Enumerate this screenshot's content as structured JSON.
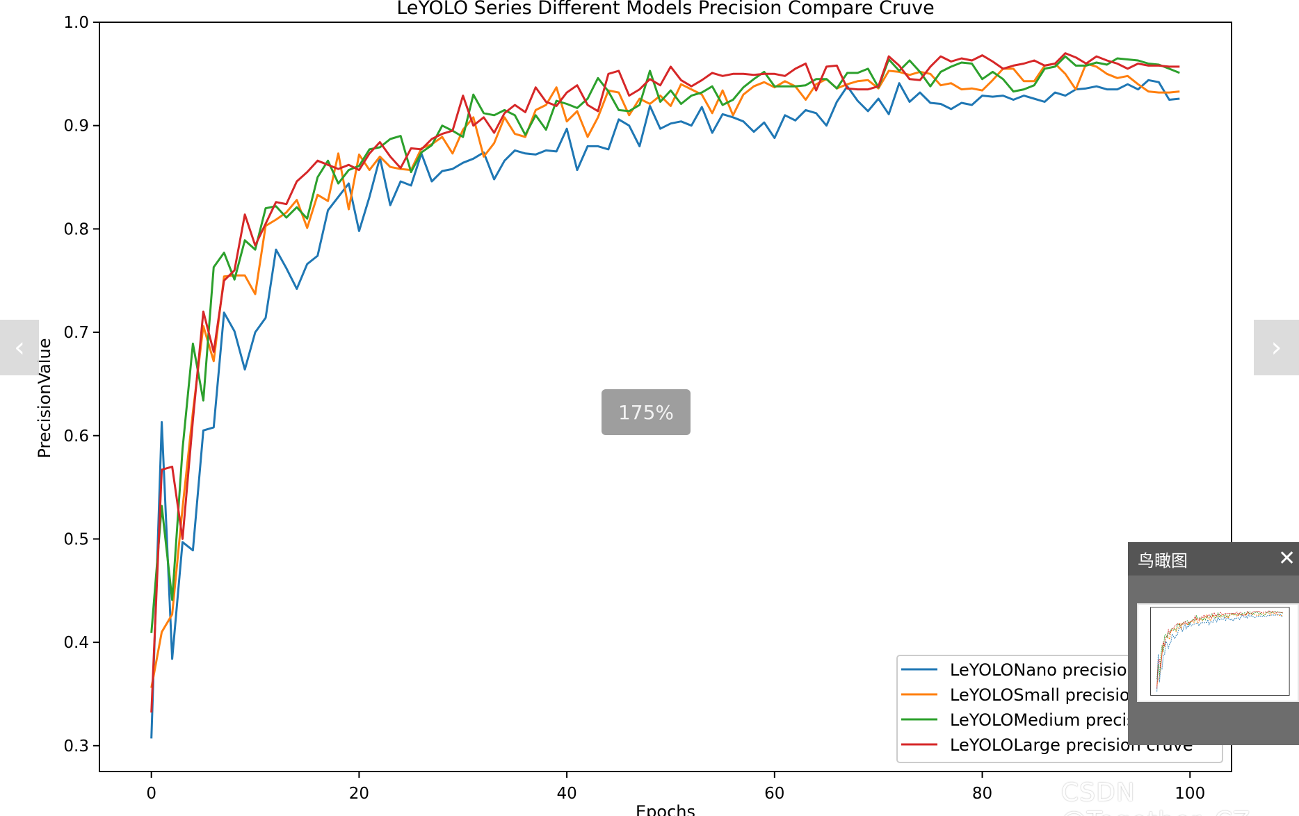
{
  "chart_data": {
    "type": "line",
    "title": "LeYOLO Series Different Models Precision Compare Cruve",
    "xlabel": "Epochs",
    "ylabel": "PrecisionValue",
    "xlim": [
      -5,
      104
    ],
    "ylim": [
      0.275,
      1.0
    ],
    "xticks": [
      0,
      20,
      40,
      60,
      80,
      100
    ],
    "yticks": [
      0.3,
      0.4,
      0.5,
      0.6,
      0.7,
      0.8,
      0.9,
      1.0
    ],
    "grid": false,
    "legend_position": "lower-right",
    "series": [
      {
        "name": "LeYOLONano precision cruve",
        "color": "#1f77b4",
        "values": [
          0.307,
          0.613,
          0.384,
          0.497,
          0.489,
          0.605,
          0.608,
          0.719,
          0.701,
          0.664,
          0.7,
          0.714,
          0.78,
          0.762,
          0.742,
          0.766,
          0.774,
          0.818,
          0.831,
          0.844,
          0.798,
          0.831,
          0.869,
          0.823,
          0.846,
          0.842,
          0.873,
          0.846,
          0.856,
          0.858,
          0.864,
          0.868,
          0.874,
          0.848,
          0.866,
          0.876,
          0.873,
          0.872,
          0.876,
          0.875,
          0.897,
          0.857,
          0.88,
          0.88,
          0.877,
          0.906,
          0.9,
          0.88,
          0.919,
          0.897,
          0.902,
          0.904,
          0.9,
          0.918,
          0.893,
          0.911,
          0.908,
          0.904,
          0.894,
          0.903,
          0.888,
          0.91,
          0.905,
          0.915,
          0.912,
          0.9,
          0.923,
          0.938,
          0.924,
          0.914,
          0.926,
          0.911,
          0.941,
          0.923,
          0.932,
          0.922,
          0.921,
          0.916,
          0.922,
          0.92,
          0.929,
          0.928,
          0.929,
          0.925,
          0.929,
          0.926,
          0.923,
          0.932,
          0.929,
          0.935,
          0.936,
          0.938,
          0.935,
          0.935,
          0.94,
          0.935,
          0.944,
          0.942,
          0.925,
          0.926
        ]
      },
      {
        "name": "LeYOLOSmall precision cruve",
        "color": "#ff7f0e",
        "values": [
          0.356,
          0.41,
          0.427,
          0.53,
          0.623,
          0.706,
          0.672,
          0.754,
          0.755,
          0.755,
          0.737,
          0.803,
          0.809,
          0.816,
          0.828,
          0.801,
          0.833,
          0.827,
          0.873,
          0.819,
          0.872,
          0.857,
          0.87,
          0.86,
          0.858,
          0.857,
          0.878,
          0.882,
          0.889,
          0.873,
          0.896,
          0.908,
          0.87,
          0.883,
          0.908,
          0.892,
          0.889,
          0.915,
          0.92,
          0.937,
          0.904,
          0.914,
          0.889,
          0.908,
          0.934,
          0.932,
          0.91,
          0.926,
          0.921,
          0.929,
          0.919,
          0.94,
          0.935,
          0.93,
          0.912,
          0.934,
          0.91,
          0.93,
          0.938,
          0.942,
          0.937,
          0.943,
          0.938,
          0.925,
          0.94,
          0.945,
          0.936,
          0.94,
          0.943,
          0.944,
          0.936,
          0.953,
          0.952,
          0.949,
          0.952,
          0.95,
          0.939,
          0.941,
          0.935,
          0.936,
          0.934,
          0.944,
          0.955,
          0.955,
          0.943,
          0.943,
          0.958,
          0.96,
          0.95,
          0.935,
          0.96,
          0.957,
          0.95,
          0.946,
          0.948,
          0.94,
          0.933,
          0.932,
          0.932,
          0.933
        ]
      },
      {
        "name": "LeYOLOMedium precision cruve",
        "color": "#2ca02c",
        "values": [
          0.409,
          0.532,
          0.441,
          0.587,
          0.689,
          0.634,
          0.763,
          0.777,
          0.751,
          0.789,
          0.78,
          0.82,
          0.822,
          0.811,
          0.821,
          0.81,
          0.85,
          0.866,
          0.844,
          0.857,
          0.861,
          0.877,
          0.879,
          0.887,
          0.89,
          0.855,
          0.874,
          0.881,
          0.9,
          0.895,
          0.889,
          0.93,
          0.912,
          0.91,
          0.915,
          0.91,
          0.891,
          0.91,
          0.896,
          0.924,
          0.921,
          0.917,
          0.926,
          0.946,
          0.933,
          0.915,
          0.914,
          0.92,
          0.953,
          0.923,
          0.934,
          0.921,
          0.929,
          0.932,
          0.938,
          0.92,
          0.925,
          0.937,
          0.945,
          0.952,
          0.938,
          0.938,
          0.938,
          0.939,
          0.945,
          0.945,
          0.936,
          0.951,
          0.951,
          0.955,
          0.937,
          0.964,
          0.953,
          0.963,
          0.952,
          0.938,
          0.952,
          0.957,
          0.961,
          0.96,
          0.945,
          0.952,
          0.945,
          0.933,
          0.935,
          0.939,
          0.955,
          0.957,
          0.967,
          0.958,
          0.958,
          0.961,
          0.959,
          0.965,
          0.964,
          0.963,
          0.96,
          0.959,
          0.955,
          0.951
        ]
      },
      {
        "name": "LeYOLOLarge precision cruve",
        "color": "#d62728",
        "values": [
          0.332,
          0.567,
          0.57,
          0.5,
          0.615,
          0.72,
          0.681,
          0.75,
          0.76,
          0.814,
          0.784,
          0.805,
          0.826,
          0.824,
          0.846,
          0.855,
          0.866,
          0.862,
          0.858,
          0.862,
          0.857,
          0.873,
          0.884,
          0.87,
          0.859,
          0.878,
          0.877,
          0.887,
          0.892,
          0.895,
          0.929,
          0.9,
          0.908,
          0.893,
          0.912,
          0.92,
          0.913,
          0.937,
          0.923,
          0.919,
          0.932,
          0.939,
          0.92,
          0.914,
          0.95,
          0.953,
          0.929,
          0.935,
          0.945,
          0.939,
          0.957,
          0.944,
          0.938,
          0.944,
          0.951,
          0.948,
          0.95,
          0.95,
          0.949,
          0.95,
          0.95,
          0.948,
          0.955,
          0.96,
          0.934,
          0.957,
          0.958,
          0.936,
          0.935,
          0.935,
          0.938,
          0.967,
          0.958,
          0.945,
          0.944,
          0.957,
          0.967,
          0.962,
          0.965,
          0.963,
          0.968,
          0.962,
          0.955,
          0.958,
          0.96,
          0.963,
          0.958,
          0.96,
          0.97,
          0.966,
          0.96,
          0.967,
          0.963,
          0.96,
          0.955,
          0.96,
          0.958,
          0.958,
          0.957,
          0.957
        ]
      }
    ]
  },
  "viewer": {
    "zoom_label": "175%",
    "prev_glyph": "‹",
    "next_glyph": "›",
    "birdseye_title": "鸟瞰图",
    "close_glyph": "✕",
    "watermark": "CSDN @Together_CZ"
  }
}
